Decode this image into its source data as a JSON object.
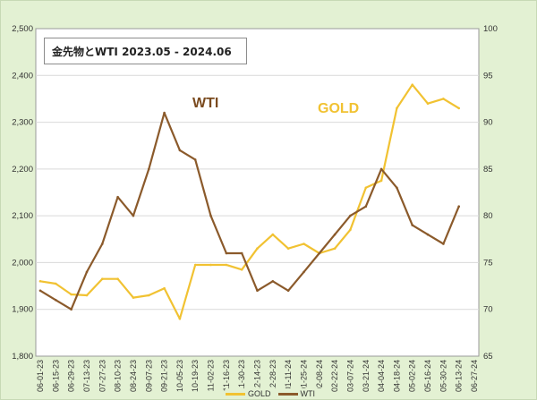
{
  "chart_data": {
    "type": "line",
    "title": "金先物とWTI  2023.05 - 2024.06",
    "x": [
      "06-01-23",
      "06-15-23",
      "06-29-23",
      "07-13-23",
      "07-27-23",
      "08-10-23",
      "08-24-23",
      "09-07-23",
      "09-21-23",
      "10-05-23",
      "10-19-23",
      "11-02-23",
      "11-16-23",
      "11-30-23",
      "12-14-23",
      "12-28-23",
      "01-11-24",
      "01-25-24",
      "02-08-24",
      "02-22-24",
      "03-07-24",
      "03-21-24",
      "04-04-24",
      "04-18-24",
      "05-02-24",
      "05-16-24",
      "05-30-24",
      "06-13-24",
      "06-27-24"
    ],
    "y_left_ticks": [
      "1,800",
      "1,900",
      "2,000",
      "2,100",
      "2,200",
      "2,300",
      "2,400",
      "2,500"
    ],
    "y_left_lim": [
      1800,
      2500
    ],
    "y_right_ticks": [
      "65",
      "70",
      "75",
      "80",
      "85",
      "90",
      "95",
      "100"
    ],
    "y_right_lim": [
      65,
      100
    ],
    "annotations": [
      "WTI",
      "GOLD"
    ],
    "grid": true,
    "legend_position": "bottom",
    "series": [
      {
        "name": "GOLD",
        "axis": "left",
        "color": "#f1c232",
        "values": [
          1960,
          1955,
          1932,
          1930,
          1965,
          1965,
          1925,
          1930,
          1945,
          1880,
          1995,
          1995,
          1995,
          1985,
          2030,
          2060,
          2030,
          2040,
          2020,
          2030,
          2070,
          2160,
          2175,
          2330,
          2380,
          2340,
          2350,
          2330,
          null
        ]
      },
      {
        "name": "WTI",
        "axis": "right",
        "color": "#8b5a2b",
        "values": [
          72,
          71,
          70,
          74,
          77,
          82,
          80,
          85,
          91,
          87,
          86,
          80,
          76,
          76,
          72,
          73,
          72,
          74,
          76,
          78,
          80,
          81,
          85,
          83,
          79,
          78,
          77,
          81,
          null
        ]
      }
    ]
  }
}
